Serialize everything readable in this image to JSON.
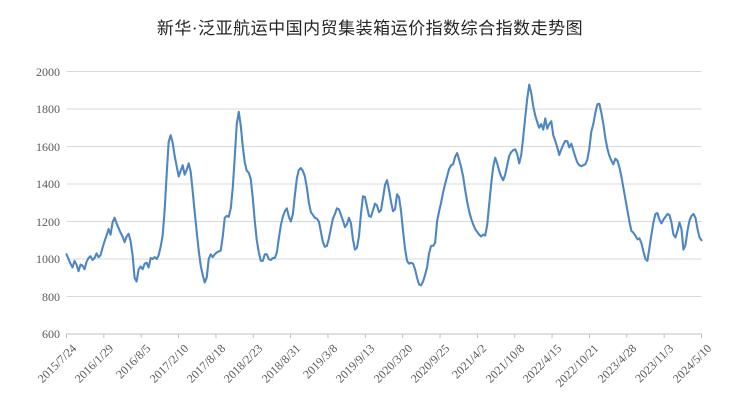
{
  "title": "新华·泛亚航运中国内贸集装箱运价指数综合指数走势图",
  "styles": {
    "line_color": "#4E86C4",
    "gridline_color": "#D9D9D9",
    "axis_color": "#BFBFBF",
    "tick_label_color": "#595959",
    "title_color": "#262626",
    "background": "#FFFFFF"
  },
  "chart_data": {
    "type": "line",
    "title": "新华·泛亚航运中国内贸集装箱运价指数综合指数走势图",
    "legend_position": "none",
    "grid": true,
    "x_axis": {
      "start": "2015/7/24",
      "end": "2024/5/10",
      "tick_labels": [
        "2015/7/24",
        "2016/1/29",
        "2016/8/5",
        "2017/2/10",
        "2017/8/18",
        "2018/2/23",
        "2018/8/31",
        "2019/3/8",
        "2019/9/13",
        "2020/3/20",
        "2020/9/25",
        "2021/4/2",
        "2021/10/8",
        "2022/4/15",
        "2022/10/21",
        "2023/4/28",
        "2023/11/3",
        "2024/5/10"
      ]
    },
    "y_axis": {
      "min": 600,
      "max": 2000,
      "ticks": [
        600,
        800,
        1000,
        1200,
        1400,
        1600,
        1800,
        2000
      ]
    },
    "series": [
      {
        "name": "综合指数",
        "color": "#4E86C4",
        "note": "values evenly spaced in time from 2015/7/24 to 2024/5/10",
        "values": [
          1025,
          1000,
          975,
          955,
          990,
          970,
          935,
          970,
          965,
          945,
          985,
          1005,
          1015,
          995,
          1005,
          1030,
          1010,
          1020,
          1060,
          1095,
          1125,
          1160,
          1130,
          1195,
          1220,
          1190,
          1165,
          1140,
          1120,
          1090,
          1120,
          1135,
          1095,
          1020,
          900,
          880,
          945,
          960,
          945,
          975,
          980,
          955,
          1005,
          1000,
          1010,
          1000,
          1020,
          1065,
          1125,
          1260,
          1450,
          1625,
          1660,
          1620,
          1550,
          1495,
          1440,
          1470,
          1500,
          1450,
          1475,
          1510,
          1465,
          1360,
          1250,
          1145,
          1045,
          965,
          915,
          875,
          900,
          1000,
          1025,
          1010,
          1025,
          1035,
          1040,
          1045,
          1120,
          1220,
          1230,
          1225,
          1270,
          1380,
          1545,
          1720,
          1785,
          1710,
          1600,
          1515,
          1470,
          1460,
          1425,
          1325,
          1200,
          1100,
          1035,
          990,
          990,
          1025,
          1025,
          1000,
          995,
          1005,
          1005,
          1035,
          1110,
          1180,
          1225,
          1255,
          1270,
          1225,
          1200,
          1240,
          1340,
          1430,
          1475,
          1485,
          1470,
          1440,
          1380,
          1300,
          1250,
          1235,
          1220,
          1215,
          1200,
          1145,
          1090,
          1065,
          1070,
          1110,
          1165,
          1215,
          1240,
          1270,
          1265,
          1235,
          1205,
          1170,
          1185,
          1220,
          1190,
          1105,
          1050,
          1060,
          1120,
          1240,
          1335,
          1330,
          1280,
          1230,
          1225,
          1260,
          1295,
          1285,
          1250,
          1260,
          1325,
          1395,
          1420,
          1370,
          1305,
          1255,
          1265,
          1345,
          1330,
          1255,
          1150,
          1055,
          990,
          975,
          980,
          975,
          945,
          900,
          865,
          860,
          880,
          915,
          955,
          1030,
          1070,
          1070,
          1085,
          1200,
          1255,
          1300,
          1355,
          1400,
          1440,
          1480,
          1500,
          1505,
          1545,
          1565,
          1530,
          1490,
          1440,
          1370,
          1305,
          1255,
          1215,
          1185,
          1160,
          1145,
          1130,
          1120,
          1130,
          1125,
          1180,
          1290,
          1400,
          1490,
          1540,
          1510,
          1470,
          1440,
          1420,
          1450,
          1500,
          1550,
          1570,
          1580,
          1585,
          1560,
          1510,
          1555,
          1650,
          1755,
          1855,
          1930,
          1885,
          1815,
          1765,
          1730,
          1700,
          1720,
          1690,
          1750,
          1695,
          1720,
          1735,
          1660,
          1630,
          1595,
          1555,
          1585,
          1610,
          1630,
          1628,
          1595,
          1615,
          1580,
          1545,
          1515,
          1500,
          1495,
          1500,
          1505,
          1530,
          1590,
          1680,
          1720,
          1780,
          1825,
          1828,
          1780,
          1720,
          1645,
          1590,
          1550,
          1525,
          1505,
          1535,
          1525,
          1490,
          1440,
          1380,
          1320,
          1260,
          1200,
          1150,
          1140,
          1125,
          1105,
          1110,
          1085,
          1040,
          1000,
          990,
          1060,
          1130,
          1195,
          1240,
          1245,
          1210,
          1190,
          1210,
          1225,
          1240,
          1235,
          1195,
          1130,
          1115,
          1150,
          1195,
          1160,
          1050,
          1075,
          1150,
          1205,
          1230,
          1240,
          1220,
          1160,
          1115,
          1100
        ]
      }
    ]
  }
}
